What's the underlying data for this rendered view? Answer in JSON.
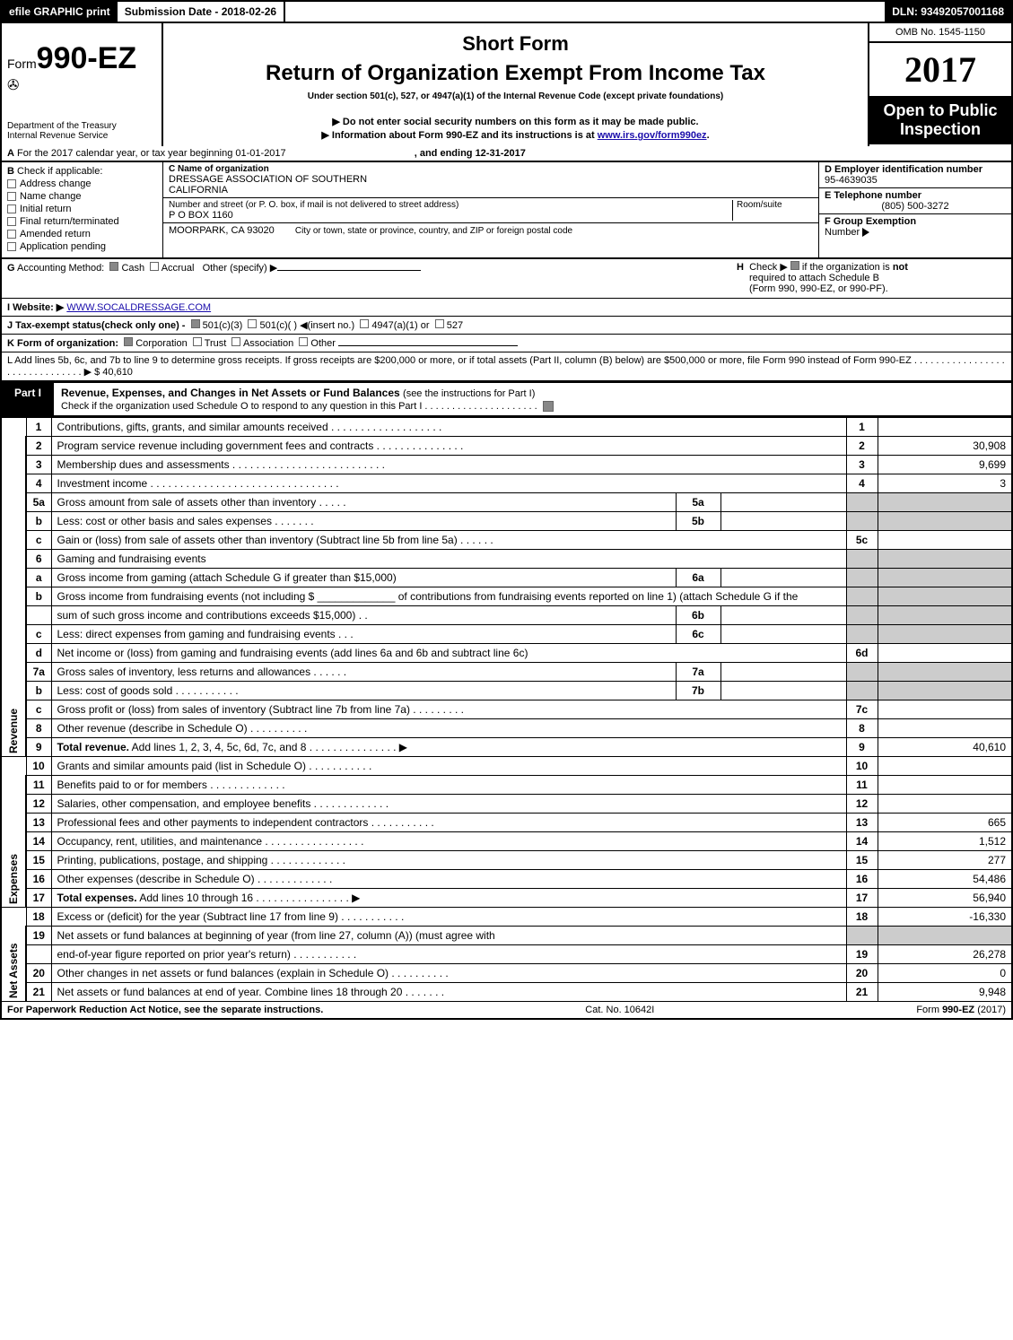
{
  "topBar": {
    "efile": "efile GRAPHIC print",
    "submissionDate": "Submission Date - 2018-02-26",
    "dln": "DLN: 93492057001168"
  },
  "header": {
    "formPrefix": "Form",
    "formNumber": "990-EZ",
    "dept1": "Department of the Treasury",
    "dept2": "Internal Revenue Service",
    "shortForm": "Short Form",
    "mainTitle": "Return of Organization Exempt From Income Tax",
    "subtitle": "Under section 501(c), 527, or 4947(a)(1) of the Internal Revenue Code (except private foundations)",
    "note1": "▶ Do not enter social security numbers on this form as it may be made public.",
    "note2prefix": "▶ Information about Form 990-EZ and its instructions is at ",
    "note2link": "www.irs.gov/form990ez",
    "note2suffix": ".",
    "omb": "OMB No. 1545-1150",
    "year": "2017",
    "openPublic": "Open to Public",
    "inspection": "Inspection"
  },
  "rowA": {
    "aLabel": "A",
    "aText": "For the 2017 calendar year, or tax year beginning 01-01-2017",
    "aEnd": ", and ending 12-31-2017"
  },
  "colB": {
    "bLabel": "B",
    "bText": "Check if applicable:",
    "items": [
      "Address change",
      "Name change",
      "Initial return",
      "Final return/terminated",
      "Amended return",
      "Application pending"
    ]
  },
  "colC": {
    "nameLabel": "C Name of organization",
    "name1": "DRESSAGE ASSOCIATION OF SOUTHERN",
    "name2": "CALIFORNIA",
    "streetLabel": "Number and street (or P. O. box, if mail is not delivered to street address)",
    "roomLabel": "Room/suite",
    "street": "P O BOX 1160",
    "cityLabel": "City or town, state or province, country, and ZIP or foreign postal code",
    "city": "MOORPARK, CA  93020"
  },
  "colDE": {
    "dLabel": "D Employer identification number",
    "dVal": "95-4639035",
    "eLabel": "E Telephone number",
    "eVal": "(805) 500-3272",
    "fLabel": "F Group Exemption",
    "fLabel2": "Number",
    "fArrow": "▶"
  },
  "rowG": {
    "gLabel": "G",
    "gText": "Accounting Method:",
    "gCash": "Cash",
    "gAccrual": "Accrual",
    "gOther": "Other (specify) ▶",
    "hLabel": "H",
    "hText1": "Check ▶",
    "hText2": "if the organization is",
    "hNot": "not",
    "hText3": "required to attach Schedule B",
    "hText4": "(Form 990, 990-EZ, or 990-PF)."
  },
  "rowI": {
    "iLabel": "I Website: ▶",
    "iVal": "WWW.SOCALDRESSAGE.COM"
  },
  "rowJ": {
    "jText": "J Tax-exempt status(check only one) -",
    "j1": "501(c)(3)",
    "j2": "501(c)(  ) ◀(insert no.)",
    "j3": "4947(a)(1) or",
    "j4": "527"
  },
  "rowK": {
    "kText": "K Form of organization:",
    "k1": "Corporation",
    "k2": "Trust",
    "k3": "Association",
    "k4": "Other"
  },
  "rowL": {
    "lText": "L Add lines 5b, 6c, and 7b to line 9 to determine gross receipts. If gross receipts are $200,000 or more, or if total assets (Part II, column (B) below) are $500,000 or more, file Form 990 instead of Form 990-EZ",
    "lDots": ". . . . . . . . . . . . . . . . . . . . . . . . . . . . . . . ▶",
    "lVal": "$ 40,610"
  },
  "part1": {
    "label": "Part I",
    "title": "Revenue, Expenses, and Changes in Net Assets or Fund Balances",
    "titleSub": "(see the instructions for Part I)",
    "checkLine": "Check if the organization used Schedule O to respond to any question in this Part I . . . . . . . . . . . . . . . . . . . . ."
  },
  "sections": {
    "revenue": "Revenue",
    "expenses": "Expenses",
    "netAssets": "Net Assets"
  },
  "lines": [
    {
      "n": "1",
      "desc": "Contributions, gifts, grants, and similar amounts received . . . . . . . . . . . . . . . . . . .",
      "num": "1",
      "val": ""
    },
    {
      "n": "2",
      "desc": "Program service revenue including government fees and contracts . . . . . . . . . . . . . . .",
      "num": "2",
      "val": "30,908"
    },
    {
      "n": "3",
      "desc": "Membership dues and assessments . . . . . . . . . . . . . . . . . . . . . . . . . .",
      "num": "3",
      "val": "9,699"
    },
    {
      "n": "4",
      "desc": "Investment income . . . . . . . . . . . . . . . . . . . . . . . . . . . . . . . .",
      "num": "4",
      "val": "3"
    },
    {
      "n": "5a",
      "desc": "Gross amount from sale of assets other than inventory . . . . .",
      "mid": "5a",
      "midval": "",
      "shade": true
    },
    {
      "n": "b",
      "desc": "Less: cost or other basis and sales expenses . . . . . . .",
      "mid": "5b",
      "midval": "",
      "shade": true
    },
    {
      "n": "c",
      "desc": "Gain or (loss) from sale of assets other than inventory (Subtract line 5b from line 5a)       . . . . . .",
      "num": "5c",
      "val": ""
    },
    {
      "n": "6",
      "desc": "Gaming and fundraising events",
      "shade": true
    },
    {
      "n": "a",
      "desc": "Gross income from gaming (attach Schedule G if greater than $15,000)",
      "mid": "6a",
      "midval": "",
      "shade": true
    },
    {
      "n": "b",
      "desc": "Gross income from fundraising events (not including $ _____________ of contributions from fundraising events reported on line 1) (attach Schedule G if the",
      "shade": true
    },
    {
      "n": "",
      "desc": "sum of such gross income and contributions exceeds $15,000)      . .",
      "mid": "6b",
      "midval": "",
      "shade": true
    },
    {
      "n": "c",
      "desc": "Less: direct expenses from gaming and fundraising events      . . .",
      "mid": "6c",
      "midval": "",
      "shade": true
    },
    {
      "n": "d",
      "desc": "Net income or (loss) from gaming and fundraising events (add lines 6a and 6b and subtract line 6c)",
      "num": "6d",
      "val": ""
    },
    {
      "n": "7a",
      "desc": "Gross sales of inventory, less returns and allowances        . . . . . .",
      "mid": "7a",
      "midval": "",
      "shade": true
    },
    {
      "n": "b",
      "desc": "Less: cost of goods sold              . . . . . . . . . . .",
      "mid": "7b",
      "midval": "",
      "shade": true
    },
    {
      "n": "c",
      "desc": "Gross profit or (loss) from sales of inventory (Subtract line 7b from line 7a)          . . . . . . . . .",
      "num": "7c",
      "val": ""
    },
    {
      "n": "8",
      "desc": "Other revenue (describe in Schedule O)                      . . . . . . . . . .",
      "num": "8",
      "val": ""
    },
    {
      "n": "9",
      "desc": "<b>Total revenue.</b> Add lines 1, 2, 3, 4, 5c, 6d, 7c, and 8       . . . . . . . . . . . . . . .  ▶",
      "num": "9",
      "val": "40,610"
    },
    {
      "n": "10",
      "desc": "Grants and similar amounts paid (list in Schedule O)           . . . . . . . . . . .",
      "num": "10",
      "val": ""
    },
    {
      "n": "11",
      "desc": "Benefits paid to or for members                    . . . . . . . . . . . . .",
      "num": "11",
      "val": ""
    },
    {
      "n": "12",
      "desc": "Salaries, other compensation, and employee benefits        . . . . . . . . . . . . .",
      "num": "12",
      "val": ""
    },
    {
      "n": "13",
      "desc": "Professional fees and other payments to independent contractors     . . . . . . . . . . .",
      "num": "13",
      "val": "665"
    },
    {
      "n": "14",
      "desc": "Occupancy, rent, utilities, and maintenance        . . . . . . . . . . . . . . . . .",
      "num": "14",
      "val": "1,512"
    },
    {
      "n": "15",
      "desc": "Printing, publications, postage, and shipping              . . . . . . . . . . . . .",
      "num": "15",
      "val": "277"
    },
    {
      "n": "16",
      "desc": "Other expenses (describe in Schedule O)               . . . . . . . . . . . . .",
      "num": "16",
      "val": "54,486"
    },
    {
      "n": "17",
      "desc": "<b>Total expenses.</b> Add lines 10 through 16         . . . . . . . . . . . . . . . .  ▶",
      "num": "17",
      "val": "56,940"
    },
    {
      "n": "18",
      "desc": "Excess or (deficit) for the year (Subtract line 17 from line 9)        . . . . . . . . . . .",
      "num": "18",
      "val": "-16,330"
    },
    {
      "n": "19",
      "desc": "Net assets or fund balances at beginning of year (from line 27, column (A)) (must agree with",
      "shade": true
    },
    {
      "n": "",
      "desc": "end-of-year figure reported on prior year's return)            . . . . . . . . . . .",
      "num": "19",
      "val": "26,278"
    },
    {
      "n": "20",
      "desc": "Other changes in net assets or fund balances (explain in Schedule O)     . . . . . . . . . .",
      "num": "20",
      "val": "0"
    },
    {
      "n": "21",
      "desc": "Net assets or fund balances at end of year. Combine lines 18 through 20       . . . . . . .",
      "num": "21",
      "val": "9,948"
    }
  ],
  "footer": {
    "left": "For Paperwork Reduction Act Notice, see the separate instructions.",
    "mid": "Cat. No. 10642I",
    "rightPre": "Form ",
    "rightForm": "990-EZ",
    "rightYear": " (2017)"
  }
}
